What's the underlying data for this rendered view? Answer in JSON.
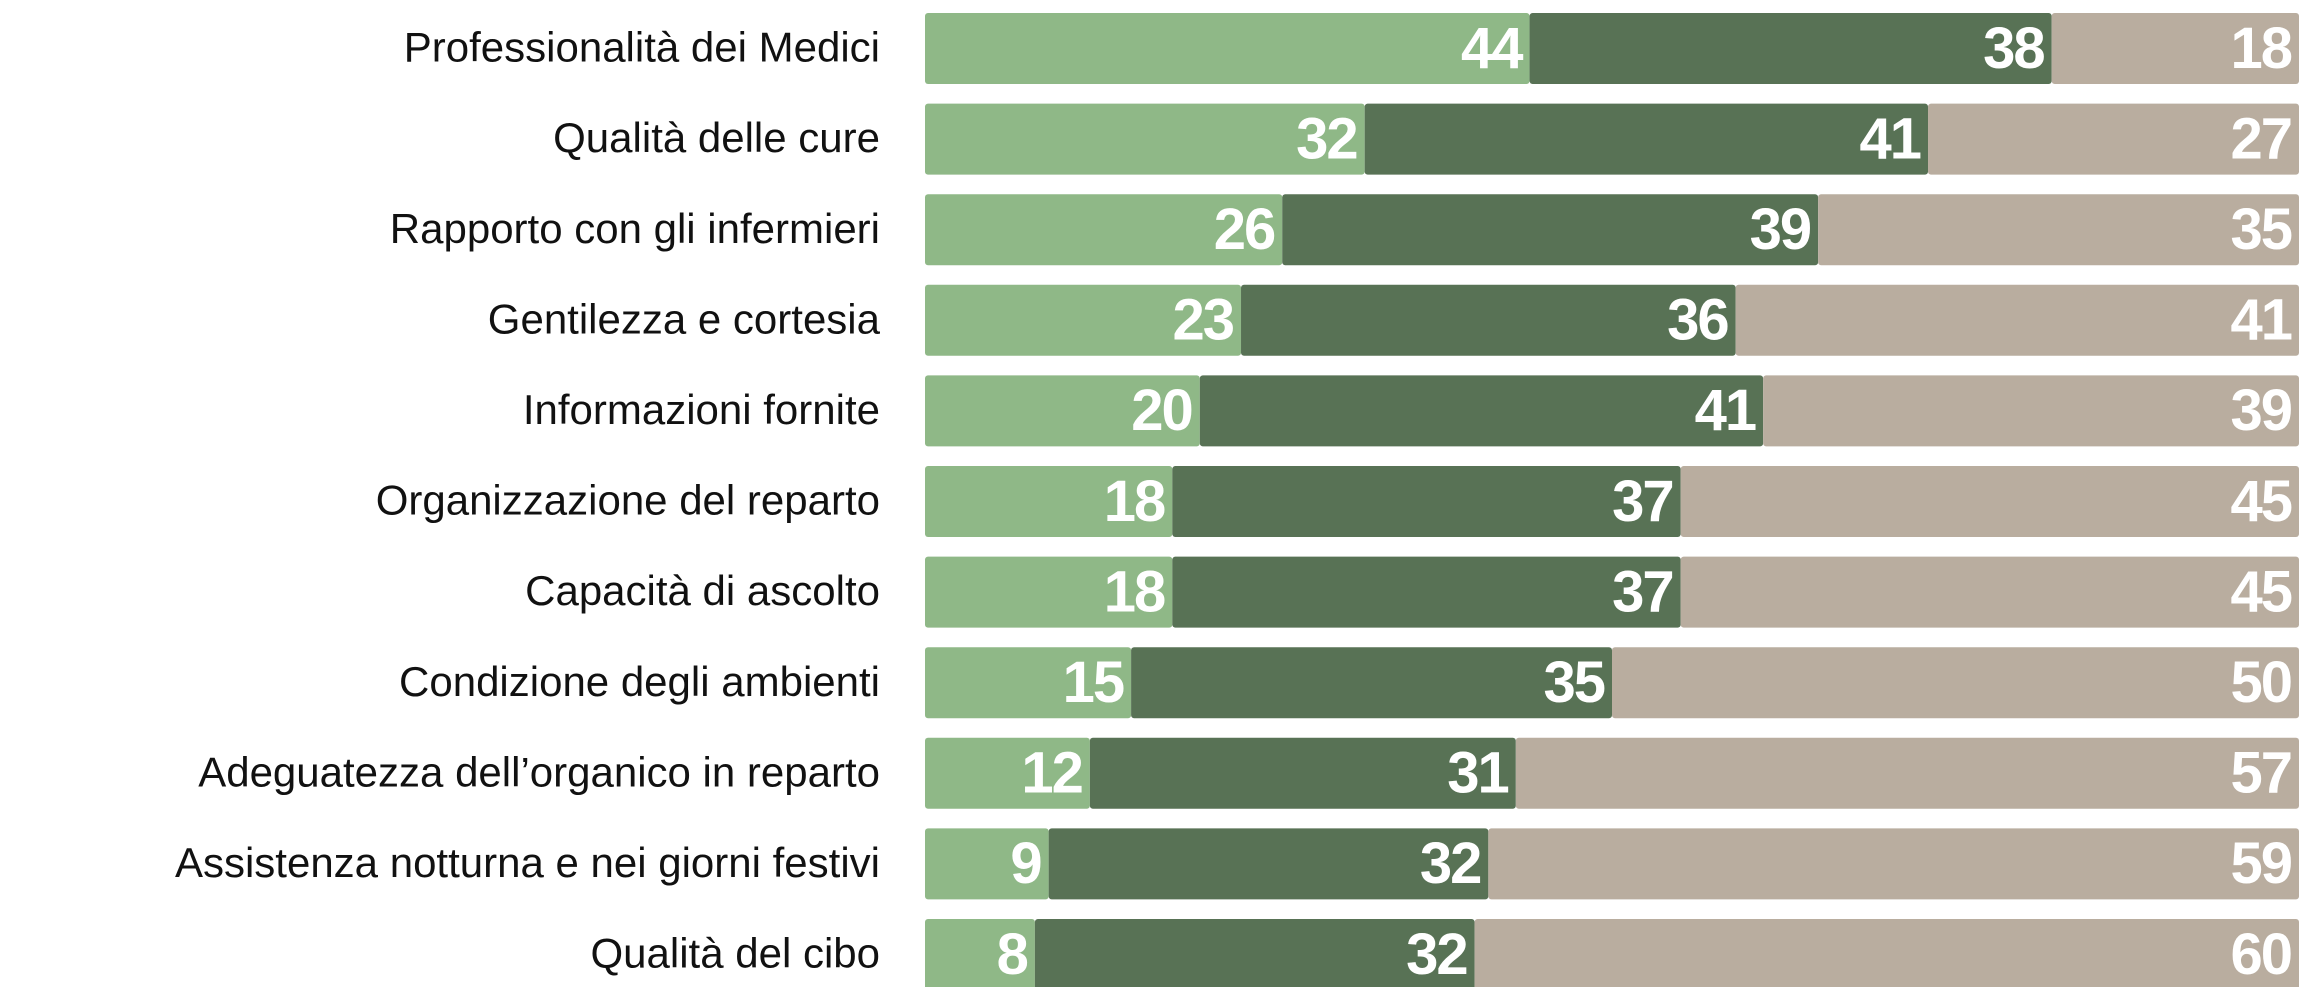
{
  "chart_data": {
    "type": "stacked-barh",
    "categories": [
      "Professionalità dei Medici",
      "Qualità delle cure",
      "Rapporto con gli infermieri",
      "Gentilezza e cortesia",
      "Informazioni fornite",
      "Organizzazione del reparto",
      "Capacità di ascolto",
      "Condizione degli ambienti",
      "Adeguatezza dell’organico in reparto",
      "Assistenza notturna e nei giorni festivi",
      "Qualità del cibo"
    ],
    "series": [
      {
        "color": "#8fb887",
        "values": [
          44,
          32,
          26,
          23,
          20,
          18,
          18,
          15,
          12,
          9,
          8
        ]
      },
      {
        "color": "#587255",
        "values": [
          38,
          41,
          39,
          36,
          41,
          37,
          37,
          35,
          31,
          32,
          32
        ]
      },
      {
        "color": "#b9ad9f",
        "values": [
          18,
          27,
          35,
          41,
          39,
          45,
          45,
          50,
          57,
          59,
          60
        ]
      }
    ],
    "xlim": [
      0,
      100
    ]
  }
}
